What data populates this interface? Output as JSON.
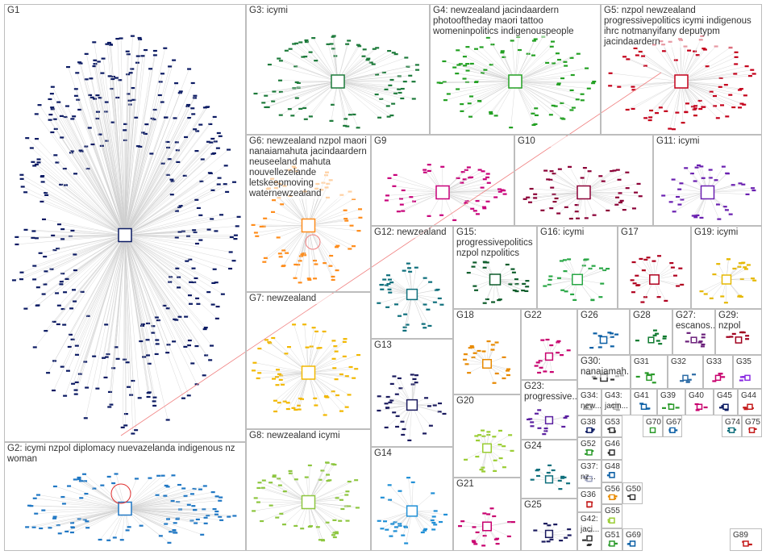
{
  "groups": [
    {
      "label": "G1"
    },
    {
      "label": "G2: icymi nzpol diplomacy nuevazelanda indigenous nz woman"
    },
    {
      "label": "G3: icymi"
    },
    {
      "label": "G4: newzealand jacindaardern photooftheday maori tattoo womeninpolitics indigenouspeople"
    },
    {
      "label": "G5: nzpol newzealand progressivepolitics icymi indigenous ihrc notmanyifany deputypm jacindaardern"
    },
    {
      "label": "G6: newzealand nzpol maori nanaiamahuta jacindaardern neuseeland mahuta nouvellezelande letskeepmoving waternewzealand"
    },
    {
      "label": "G9"
    },
    {
      "label": "G10"
    },
    {
      "label": "G11: icymi"
    },
    {
      "label": "G7: newzealand"
    },
    {
      "label": "G8: newzealand icymi"
    },
    {
      "label": "G12: newzealand"
    },
    {
      "label": "G15: progressivepolitics nzpol nzpolitics"
    },
    {
      "label": "G16: icymi"
    },
    {
      "label": "G17"
    },
    {
      "label": "G19: icymi"
    },
    {
      "label": "G13"
    },
    {
      "label": "G14"
    },
    {
      "label": "G18"
    },
    {
      "label": "G22"
    },
    {
      "label": "G26"
    },
    {
      "label": "G28"
    },
    {
      "label": "G27: escanos..."
    },
    {
      "label": "G29: nzpol"
    },
    {
      "label": "G30: nanaiamah..."
    },
    {
      "label": "G31"
    },
    {
      "label": "G32"
    },
    {
      "label": "G33"
    },
    {
      "label": "G35"
    },
    {
      "label": "G23: progressive..."
    },
    {
      "label": "G20"
    },
    {
      "label": "G34: new..."
    },
    {
      "label": "G43: jacin..."
    },
    {
      "label": "G41"
    },
    {
      "label": "G39"
    },
    {
      "label": "G40"
    },
    {
      "label": "G45"
    },
    {
      "label": "G44"
    },
    {
      "label": "G24"
    },
    {
      "label": "G21"
    },
    {
      "label": "G25"
    },
    {
      "label": "G38"
    },
    {
      "label": "G53"
    },
    {
      "label": "G70"
    },
    {
      "label": "G67"
    },
    {
      "label": "G74"
    },
    {
      "label": "G75"
    },
    {
      "label": "G52"
    },
    {
      "label": "G46"
    },
    {
      "label": "G37: nz..."
    },
    {
      "label": "G48"
    },
    {
      "label": "G56"
    },
    {
      "label": "G36"
    },
    {
      "label": "G55"
    },
    {
      "label": "G50"
    },
    {
      "label": "G42: jaci..."
    },
    {
      "label": "G51"
    },
    {
      "label": "G69"
    },
    {
      "label": "G89"
    }
  ]
}
